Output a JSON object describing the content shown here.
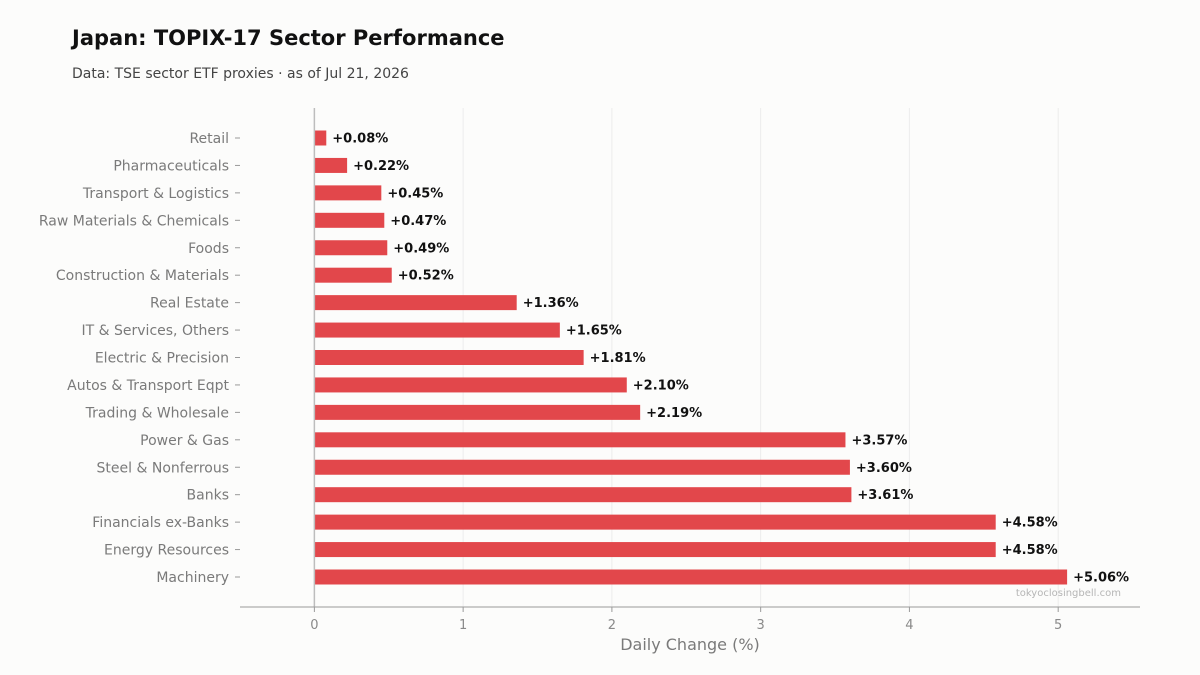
{
  "header": {
    "title": "Japan: TOPIX-17 Sector Performance",
    "subtitle": "Data: TSE sector ETF proxies · as of Jul 21, 2026"
  },
  "watermark": "tokyoclosingbell.com",
  "colors": {
    "bar": "#e2474b",
    "background": "#fcfcfb",
    "grid": "#ececec",
    "axis": "#9a9a9a",
    "zero_line": "#bdbdbd"
  },
  "chart_data": {
    "type": "bar",
    "orientation": "horizontal",
    "title": "Japan: TOPIX-17 Sector Performance",
    "subtitle": "Data: TSE sector ETF proxies · as of Jul 21, 2026",
    "xlabel": "Daily Change (%)",
    "ylabel": "",
    "xlim": [
      -0.5,
      5.55
    ],
    "xticks": [
      0,
      1,
      2,
      3,
      4,
      5
    ],
    "grid": "vertical",
    "legend": "none",
    "categories": [
      "Retail",
      "Pharmaceuticals",
      "Transport & Logistics",
      "Raw Materials & Chemicals",
      "Foods",
      "Construction & Materials",
      "Real Estate",
      "IT & Services, Others",
      "Electric & Precision",
      "Autos & Transport Eqpt",
      "Trading & Wholesale",
      "Power & Gas",
      "Steel & Nonferrous",
      "Banks",
      "Financials ex-Banks",
      "Energy Resources",
      "Machinery"
    ],
    "values": [
      0.08,
      0.22,
      0.45,
      0.47,
      0.49,
      0.52,
      1.36,
      1.65,
      1.81,
      2.1,
      2.19,
      3.57,
      3.6,
      3.61,
      4.58,
      4.58,
      5.06
    ],
    "value_labels": [
      "+0.08%",
      "+0.22%",
      "+0.45%",
      "+0.47%",
      "+0.49%",
      "+0.52%",
      "+1.36%",
      "+1.65%",
      "+1.81%",
      "+2.10%",
      "+2.19%",
      "+3.57%",
      "+3.60%",
      "+3.61%",
      "+4.58%",
      "+4.58%",
      "+5.06%"
    ]
  }
}
